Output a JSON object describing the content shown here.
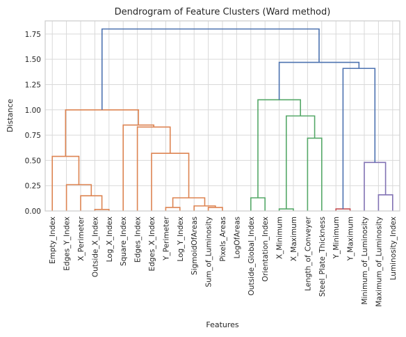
{
  "chart_data": {
    "type": "dendrogram",
    "title": "Dendrogram of Feature Clusters (Ward method)",
    "xlabel": "Features",
    "ylabel": "Distance",
    "ylim": [
      0,
      1.88
    ],
    "yticks": [
      "0.00",
      "0.25",
      "0.50",
      "0.75",
      "1.00",
      "1.25",
      "1.50",
      "1.75"
    ],
    "ytick_values": [
      0,
      0.25,
      0.5,
      0.75,
      1.0,
      1.25,
      1.5,
      1.75
    ],
    "grid": true,
    "leaves": [
      "Empty_Index",
      "Edges_Y_Index",
      "X_Perimeter",
      "Outside_X_Index",
      "Log_X_Index",
      "Square_Index",
      "Edges_Index",
      "Edges_X_Index",
      "Y_Perimeter",
      "Log_Y_Index",
      "SigmoidOfAreas",
      "Sum_of_Luminosity",
      "Pixels_Areas",
      "LogOfAreas",
      "Outside_Global_Index",
      "Orientation_Index",
      "X_Minimum",
      "X_Maximum",
      "Length_of_Conveyer",
      "Steel_Plate_Thickness",
      "Y_Minimum",
      "Y_Maximum",
      "Minimum_of_Luminosity",
      "Maximum_of_Luminosity",
      "Luminosity_Index"
    ],
    "colors": {
      "orange": "#dd8452",
      "green": "#55a868",
      "red": "#c44e52",
      "purple": "#8172b3",
      "blue": "#4c72b0"
    },
    "links": [
      {
        "x": [
          3.5,
          3.5,
          4.5,
          4.5
        ],
        "y": [
          0,
          0.015,
          0.015,
          0
        ],
        "color": "orange"
      },
      {
        "x": [
          2.5,
          2.5,
          4.0,
          4.0
        ],
        "y": [
          0,
          0.15,
          0.15,
          0.015
        ],
        "color": "orange"
      },
      {
        "x": [
          1.5,
          1.5,
          3.25,
          3.25
        ],
        "y": [
          0,
          0.26,
          0.26,
          0.15
        ],
        "color": "orange"
      },
      {
        "x": [
          0.5,
          0.5,
          2.375,
          2.375
        ],
        "y": [
          0,
          0.54,
          0.54,
          0.26
        ],
        "color": "orange"
      },
      {
        "x": [
          8.5,
          8.5,
          9.5,
          9.5
        ],
        "y": [
          0,
          0.035,
          0.035,
          0
        ],
        "color": "orange"
      },
      {
        "x": [
          11.5,
          11.5,
          12.5,
          12.5
        ],
        "y": [
          0,
          0.035,
          0.035,
          0
        ],
        "color": "orange"
      },
      {
        "x": [
          10.5,
          10.5,
          12.0,
          12.0
        ],
        "y": [
          0,
          0.05,
          0.05,
          0.035
        ],
        "color": "orange"
      },
      {
        "x": [
          9.0,
          9.0,
          11.25,
          11.25
        ],
        "y": [
          0.035,
          0.13,
          0.13,
          0.05
        ],
        "color": "orange"
      },
      {
        "x": [
          7.5,
          7.5,
          10.125,
          10.125
        ],
        "y": [
          0,
          0.57,
          0.57,
          0.13
        ],
        "color": "orange"
      },
      {
        "x": [
          6.5,
          6.5,
          8.8125,
          8.8125
        ],
        "y": [
          0,
          0.83,
          0.83,
          0.57
        ],
        "color": "orange"
      },
      {
        "x": [
          5.5,
          5.5,
          7.65625,
          7.65625
        ],
        "y": [
          0,
          0.85,
          0.85,
          0.83
        ],
        "color": "orange"
      },
      {
        "x": [
          1.4375,
          1.4375,
          6.578125,
          6.578125
        ],
        "y": [
          0.54,
          1.0,
          1.0,
          0.85
        ],
        "color": "orange"
      },
      {
        "x": [
          14.5,
          14.5,
          15.5,
          15.5
        ],
        "y": [
          0,
          0.13,
          0.13,
          0
        ],
        "color": "green"
      },
      {
        "x": [
          16.5,
          16.5,
          17.5,
          17.5
        ],
        "y": [
          0,
          0.02,
          0.02,
          0
        ],
        "color": "green"
      },
      {
        "x": [
          18.5,
          18.5,
          19.5,
          19.5
        ],
        "y": [
          0,
          0.72,
          0.72,
          0
        ],
        "color": "green"
      },
      {
        "x": [
          17.0,
          17.0,
          19.0,
          19.0
        ],
        "y": [
          0.02,
          0.94,
          0.94,
          0.72
        ],
        "color": "green"
      },
      {
        "x": [
          15.0,
          15.0,
          18.0,
          18.0
        ],
        "y": [
          0.13,
          1.1,
          1.1,
          0.94
        ],
        "color": "green"
      },
      {
        "x": [
          20.5,
          20.5,
          21.5,
          21.5
        ],
        "y": [
          0,
          0.02,
          0.02,
          0
        ],
        "color": "red"
      },
      {
        "x": [
          23.5,
          23.5,
          24.5,
          24.5
        ],
        "y": [
          0,
          0.16,
          0.16,
          0
        ],
        "color": "purple"
      },
      {
        "x": [
          22.5,
          22.5,
          24.0,
          24.0
        ],
        "y": [
          0,
          0.48,
          0.48,
          0.16
        ],
        "color": "purple"
      },
      {
        "x": [
          21.0,
          21.0,
          23.25,
          23.25
        ],
        "y": [
          0.02,
          1.41,
          1.41,
          0.48
        ],
        "color": "blue"
      },
      {
        "x": [
          16.5,
          16.5,
          22.125,
          22.125
        ],
        "y": [
          1.1,
          1.47,
          1.47,
          1.41
        ],
        "color": "blue"
      },
      {
        "x": [
          4.0078125,
          4.0078125,
          19.3125,
          19.3125
        ],
        "y": [
          1.0,
          1.8,
          1.8,
          1.47
        ],
        "color": "blue"
      }
    ]
  }
}
